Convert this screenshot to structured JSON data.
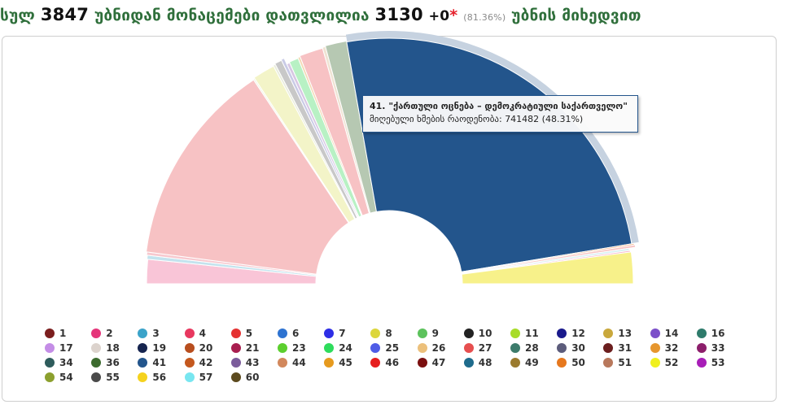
{
  "header": {
    "prefix": "სულ",
    "total_precincts": "3847",
    "middle": "უბნიდან მონაცემები დათვლილია",
    "counted": "3130",
    "plus": "+",
    "extra": "0",
    "star": "*",
    "percent": "(81.36%)",
    "suffix": "უბნის მიხედვით"
  },
  "tooltip": {
    "line1": "41. \"ქართული ოცნება – დემოკრატიული საქართველო\"",
    "line2_label": "მიღებული ხმების რაოდენობა:",
    "line2_value": "741482 (48.31%)"
  },
  "chart_data": {
    "type": "pie",
    "variant": "semicircle",
    "highlighted": "41",
    "slices": [
      {
        "name": "36",
        "percent": 3.1,
        "color": "#f9c5d7"
      },
      {
        "name": "47",
        "percent": 0.5,
        "color": "#c3e3ee"
      },
      {
        "name": "56",
        "percent": 0.4,
        "color": "#f7c9cf"
      },
      {
        "name": "50",
        "percent": 26.1,
        "color": "#f7c2c4"
      },
      {
        "name": "42",
        "percent": 0.2,
        "color": "#f1f4e4"
      },
      {
        "name": "4",
        "percent": 2.8,
        "color": "#f3f4c8"
      },
      {
        "name": "57",
        "percent": 0.3,
        "color": "#e9ecdd"
      },
      {
        "name": "28",
        "percent": 0.9,
        "color": "#c8c8c8"
      },
      {
        "name": "43",
        "percent": 0.4,
        "color": "#c9cbe6"
      },
      {
        "name": "60",
        "percent": 0.4,
        "color": "#d7c7e3"
      },
      {
        "name": "9",
        "percent": 1.2,
        "color": "#b8f1c4"
      },
      {
        "name": "45",
        "percent": 0.3,
        "color": "#f3d9b4"
      },
      {
        "name": "5",
        "percent": 3.0,
        "color": "#f7c2c4"
      },
      {
        "name": "49",
        "percent": 0.4,
        "color": "#efe3d3"
      },
      {
        "name": "55",
        "percent": 2.7,
        "color": "#b6c8b2"
      },
      {
        "name": "41",
        "percent": 48.31,
        "color": "#23558c"
      },
      {
        "name": "25",
        "percent": 0.2,
        "color": "#f5b98f"
      },
      {
        "name": "27",
        "percent": 0.3,
        "color": "#f8c4c4"
      },
      {
        "name": "48",
        "percent": 0.3,
        "color": "#d9f0f3"
      },
      {
        "name": "53",
        "percent": 0.2,
        "color": "#f7b1c9"
      },
      {
        "name": "54",
        "percent": 4.0,
        "color": "#f7f18a"
      }
    ],
    "legend": [
      {
        "label": "1",
        "color": "#7b1e1e"
      },
      {
        "label": "2",
        "color": "#e5357a"
      },
      {
        "label": "3",
        "color": "#3ba3c9"
      },
      {
        "label": "4",
        "color": "#e8385f"
      },
      {
        "label": "5",
        "color": "#e53232"
      },
      {
        "label": "6",
        "color": "#2e73d1"
      },
      {
        "label": "7",
        "color": "#2e2ee6"
      },
      {
        "label": "8",
        "color": "#dcd63c"
      },
      {
        "label": "9",
        "color": "#5cc25c"
      },
      {
        "label": "10",
        "color": "#222222"
      },
      {
        "label": "11",
        "color": "#a8dc28"
      },
      {
        "label": "12",
        "color": "#1a1a8c"
      },
      {
        "label": "13",
        "color": "#c9a83c"
      },
      {
        "label": "14",
        "color": "#7b4fc9"
      },
      {
        "label": "16",
        "color": "#2e7b6b"
      },
      {
        "label": "17",
        "color": "#c48de6"
      },
      {
        "label": "18",
        "color": "#dcd3cd"
      },
      {
        "label": "19",
        "color": "#16244f"
      },
      {
        "label": "20",
        "color": "#b84e1e"
      },
      {
        "label": "21",
        "color": "#a81e4f"
      },
      {
        "label": "23",
        "color": "#5ccf2e"
      },
      {
        "label": "24",
        "color": "#2edc5c"
      },
      {
        "label": "25",
        "color": "#4f5ce6"
      },
      {
        "label": "26",
        "color": "#ecc07b"
      },
      {
        "label": "27",
        "color": "#e64f4f"
      },
      {
        "label": "28",
        "color": "#3c7b6b"
      },
      {
        "label": "30",
        "color": "#5c5c7b"
      },
      {
        "label": "31",
        "color": "#6b1e1e"
      },
      {
        "label": "32",
        "color": "#e6962e"
      },
      {
        "label": "33",
        "color": "#8c1e6b"
      },
      {
        "label": "34",
        "color": "#2e5c5c"
      },
      {
        "label": "36",
        "color": "#3c6b2e"
      },
      {
        "label": "41",
        "color": "#23558c"
      },
      {
        "label": "42",
        "color": "#c4581e"
      },
      {
        "label": "43",
        "color": "#7b5c9b"
      },
      {
        "label": "44",
        "color": "#d2885c"
      },
      {
        "label": "45",
        "color": "#e69a1e"
      },
      {
        "label": "46",
        "color": "#e61e1e"
      },
      {
        "label": "47",
        "color": "#7b0f0f"
      },
      {
        "label": "48",
        "color": "#1e6b8c"
      },
      {
        "label": "49",
        "color": "#9b7b2e"
      },
      {
        "label": "50",
        "color": "#e6781e"
      },
      {
        "label": "51",
        "color": "#b8785c"
      },
      {
        "label": "52",
        "color": "#f0f01e"
      },
      {
        "label": "53",
        "color": "#a81eb8"
      },
      {
        "label": "54",
        "color": "#8ca02e"
      },
      {
        "label": "55",
        "color": "#4a4a4a"
      },
      {
        "label": "56",
        "color": "#f5d21e"
      },
      {
        "label": "57",
        "color": "#78e6f0"
      },
      {
        "label": "60",
        "color": "#5c4a1e"
      }
    ]
  }
}
